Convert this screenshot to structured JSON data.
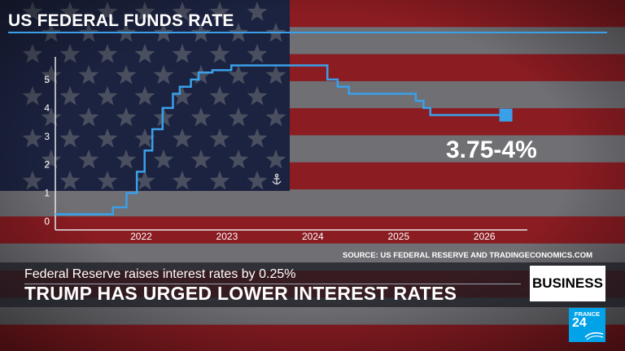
{
  "chart_data": {
    "type": "line",
    "title": "US FEDERAL FUNDS RATE",
    "line_style": "step",
    "x_ticks": [
      "2022",
      "2023",
      "2024",
      "2025",
      "2026"
    ],
    "y_ticks": [
      "0",
      "1",
      "2",
      "3",
      "4",
      "5"
    ],
    "xlim": [
      2021.5,
      2027.0
    ],
    "ylim": [
      -0.3,
      5.8
    ],
    "series": [
      {
        "x": [
          2021.5,
          2022.17,
          2022.33,
          2022.45,
          2022.54,
          2022.63,
          2022.75,
          2022.87,
          2022.95,
          2023.08,
          2023.17,
          2023.33,
          2023.55,
          2024.67,
          2024.79,
          2024.92,
          2025.7,
          2025.79,
          2025.87,
          2026.75
        ],
        "y": [
          0.25,
          0.5,
          1.0,
          1.75,
          2.5,
          3.25,
          4.0,
          4.5,
          4.75,
          5.0,
          5.25,
          5.33,
          5.5,
          5.0,
          4.75,
          4.5,
          4.25,
          4.0,
          3.75,
          3.75
        ],
        "color": "#3aa0e8"
      }
    ],
    "annotation": "3.75-4%",
    "source": "SOURCE: US FEDERAL RESERVE AND TRADINGECONOMICS.COM"
  },
  "ticker": {
    "subheadline": "Federal Reserve raises interest rates by 0.25%",
    "headline": "TRUMP HAS URGED LOWER INTEREST RATES",
    "section_label": "BUSINESS"
  },
  "brand": {
    "top": "FRANCE",
    "number": "24"
  },
  "colors": {
    "line": "#3aa0e8",
    "flag_blue": "#1c2340",
    "flag_red": "#8a1c22",
    "logo": "#00a2e8"
  },
  "icons": {
    "anchor": "anchor-icon"
  }
}
